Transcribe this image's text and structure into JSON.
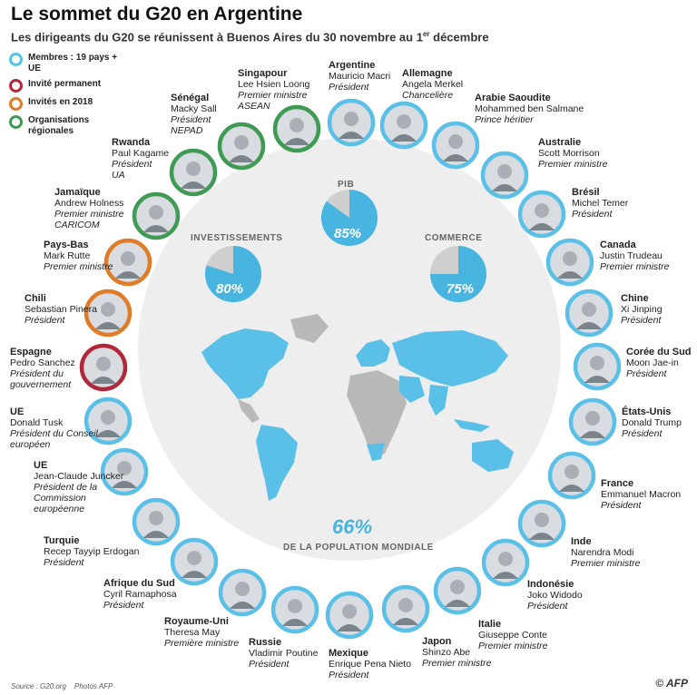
{
  "title": "Le sommet du G20 en Argentine",
  "subtitle": "Les dirigeants du G20 se réunissent à Buenos Aires du 30 novembre au 1",
  "subtitle_sup": "er",
  "subtitle_end": " décembre",
  "colors": {
    "member": "#5bc0e8",
    "permanent": "#b1283a",
    "invited": "#e07b27",
    "org": "#3f9a53",
    "accent": "#48b4e0",
    "map": "#5bc0e8",
    "land": "#b9b9b9"
  },
  "legend": [
    {
      "label": "Membres : 19 pays + UE",
      "color": "#5bc0e8"
    },
    {
      "label": "Invité permanent",
      "color": "#b1283a"
    },
    {
      "label": "Invités en 2018",
      "color": "#e07b27"
    },
    {
      "label": "Organisations régionales",
      "color": "#3f9a53"
    }
  ],
  "stats": {
    "pib_label": "PIB",
    "pib_pct": "85%",
    "inv_label": "INVESTISSEMENTS",
    "inv_pct": "80%",
    "com_label": "COMMERCE",
    "com_pct": "75%",
    "pop_pct": "66%",
    "pop_label": "DE LA POPULATION MONDIALE"
  },
  "chart_data": {
    "type": "pie",
    "series": [
      {
        "name": "PIB",
        "value": 85
      },
      {
        "name": "INVESTISSEMENTS",
        "value": 80
      },
      {
        "name": "COMMERCE",
        "value": 75
      },
      {
        "name": "DE LA POPULATION MONDIALE",
        "value": 66
      }
    ]
  },
  "leaders": [
    {
      "country": "Argentine",
      "name": "Mauricio Macri",
      "role": "Président",
      "cat": "member"
    },
    {
      "country": "Allemagne",
      "name": "Angela Merkel",
      "role": "Chancelière",
      "cat": "member"
    },
    {
      "country": "Arabie Saoudite",
      "name": "Mohammed ben Salmane",
      "role": "Prince héritier",
      "cat": "member"
    },
    {
      "country": "Australie",
      "name": "Scott Morrison",
      "role": "Premier ministre",
      "cat": "member"
    },
    {
      "country": "Brésil",
      "name": "Michel Temer",
      "role": "Président",
      "cat": "member"
    },
    {
      "country": "Canada",
      "name": "Justin Trudeau",
      "role": "Premier ministre",
      "cat": "member"
    },
    {
      "country": "Chine",
      "name": "Xi Jinping",
      "role": "Président",
      "cat": "member"
    },
    {
      "country": "Corée du Sud",
      "name": "Moon Jae-in",
      "role": "Président",
      "cat": "member"
    },
    {
      "country": "États-Unis",
      "name": "Donald Trump",
      "role": "Président",
      "cat": "member"
    },
    {
      "country": "France",
      "name": "Emmanuel Macron",
      "role": "Président",
      "cat": "member"
    },
    {
      "country": "Inde",
      "name": "Narendra Modi",
      "role": "Premier ministre",
      "cat": "member"
    },
    {
      "country": "Indonésie",
      "name": "Joko Widodo",
      "role": "Président",
      "cat": "member"
    },
    {
      "country": "Italie",
      "name": "Giuseppe Conte",
      "role": "Premier ministre",
      "cat": "member"
    },
    {
      "country": "Japon",
      "name": "Shinzo Abe",
      "role": "Premier ministre",
      "cat": "member"
    },
    {
      "country": "Mexique",
      "name": "Enrique Pena Nieto",
      "role": "Président",
      "cat": "member"
    },
    {
      "country": "Russie",
      "name": "Vladimir Poutine",
      "role": "Président",
      "cat": "member"
    },
    {
      "country": "Royaume-Uni",
      "name": "Theresa May",
      "role": "Première ministre",
      "cat": "member"
    },
    {
      "country": "Afrique du Sud",
      "name": "Cyril Ramaphosa",
      "role": "Président",
      "cat": "member"
    },
    {
      "country": "Turquie",
      "name": "Recep Tayyip Erdogan",
      "role": "Président",
      "cat": "member"
    },
    {
      "country": "UE",
      "name": "Jean-Claude Juncker",
      "role": "Président de la Commission européenne",
      "cat": "member"
    },
    {
      "country": "UE",
      "name": "Donald Tusk",
      "role": "Président du Conseil européen",
      "cat": "member"
    },
    {
      "country": "Espagne",
      "name": "Pedro Sanchez",
      "role": "Président du gouvernement",
      "cat": "permanent"
    },
    {
      "country": "Chili",
      "name": "Sebastian Pinera",
      "role": "Président",
      "cat": "invited"
    },
    {
      "country": "Pays-Bas",
      "name": "Mark Rutte",
      "role": "Premier ministre",
      "cat": "invited"
    },
    {
      "country": "Jamaïque",
      "name": "Andrew Holness",
      "role": "Premier ministre",
      "org": "CARICOM",
      "cat": "org"
    },
    {
      "country": "Rwanda",
      "name": "Paul Kagame",
      "role": "Président",
      "org": "UA",
      "cat": "org"
    },
    {
      "country": "Sénégal",
      "name": "Macky Sall",
      "role": "Président",
      "org": "NEPAD",
      "cat": "org"
    },
    {
      "country": "Singapour",
      "name": "Lee Hsien Loong",
      "role": "Premier ministre",
      "org": "ASEAN",
      "cat": "org"
    }
  ],
  "footer": {
    "source": "Source : G20.org",
    "photos": "Photos AFP",
    "brand": "© AFP"
  }
}
